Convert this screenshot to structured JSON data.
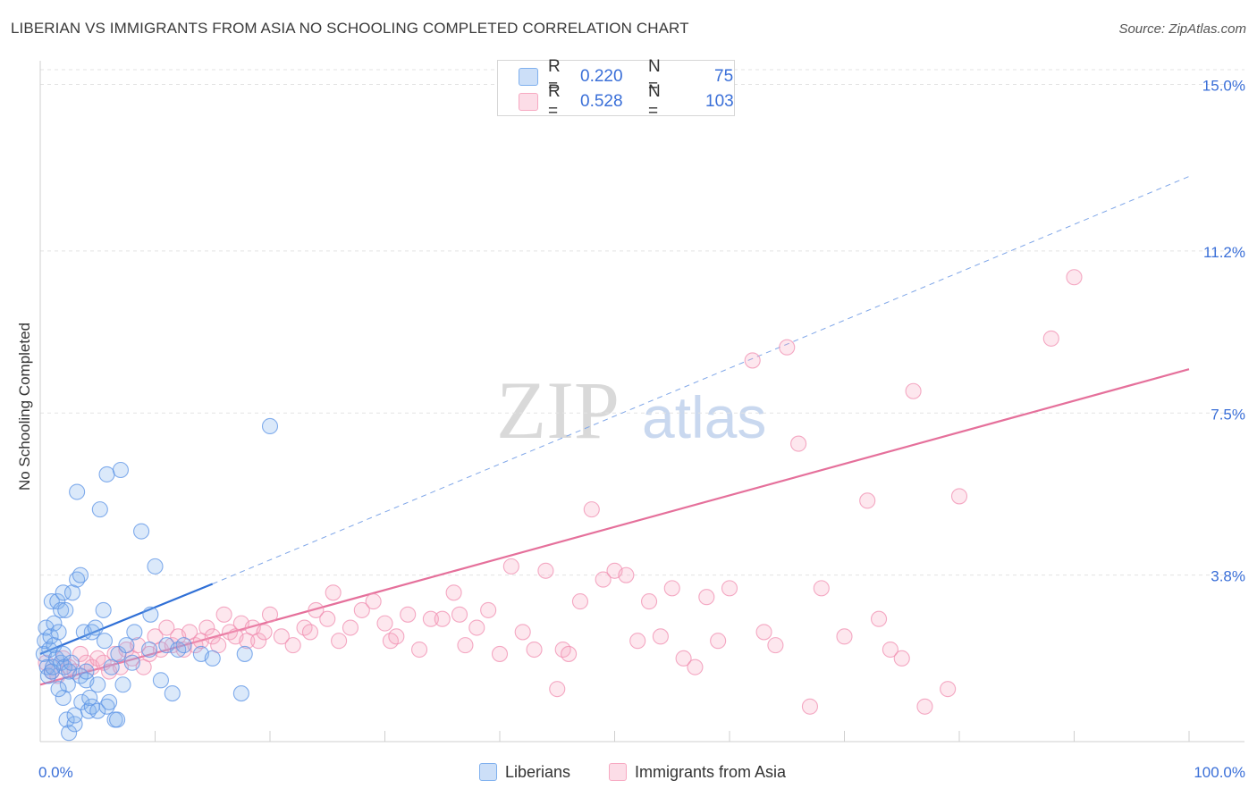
{
  "title": "LIBERIAN VS IMMIGRANTS FROM ASIA NO SCHOOLING COMPLETED CORRELATION CHART",
  "source": "Source: ZipAtlas.com",
  "watermark": {
    "zip": "ZIP",
    "atlas": "atlas"
  },
  "legend_top": [
    {
      "r_label": "R =",
      "r_value": "0.220",
      "n_label": "N =",
      "n_value": "75",
      "color": "#7fb0ee"
    },
    {
      "r_label": "R =",
      "r_value": "0.528",
      "n_label": "N =",
      "n_value": "103",
      "color": "#f7a9c2"
    }
  ],
  "legend_bottom": [
    {
      "label": "Liberians",
      "color": "#7fb0ee"
    },
    {
      "label": "Immigrants from Asia",
      "color": "#f7a9c2"
    }
  ],
  "chart_data": {
    "type": "scatter",
    "xlabel": "",
    "ylabel": "No Schooling Completed",
    "xlim": [
      0,
      100
    ],
    "ylim": [
      0,
      15.5
    ],
    "x_tick_labels": [
      {
        "value": 0,
        "label": "0.0%"
      },
      {
        "value": 100,
        "label": "100.0%"
      }
    ],
    "y_ticks": [
      {
        "value": 3.8,
        "label": "3.8%"
      },
      {
        "value": 7.5,
        "label": "7.5%"
      },
      {
        "value": 11.2,
        "label": "11.2%"
      },
      {
        "value": 15.0,
        "label": "15.0%"
      }
    ],
    "grid": true,
    "series": [
      {
        "name": "Liberians",
        "color": "#5b93e6",
        "fill": "rgba(127,176,238,0.28)",
        "trend": {
          "x0": 0,
          "y0": 2.0,
          "x1": 15,
          "y1": 3.6,
          "dash_x1": 100,
          "dash_y1": 12.9,
          "color": "#2f6fd6"
        },
        "points": [
          [
            0.3,
            2.0
          ],
          [
            0.4,
            2.3
          ],
          [
            0.5,
            2.6
          ],
          [
            0.6,
            1.7
          ],
          [
            0.7,
            1.5
          ],
          [
            0.8,
            2.1
          ],
          [
            0.9,
            2.4
          ],
          [
            1.0,
            3.2
          ],
          [
            1.0,
            1.6
          ],
          [
            1.2,
            2.7
          ],
          [
            1.2,
            2.2
          ],
          [
            1.4,
            1.9
          ],
          [
            1.5,
            3.2
          ],
          [
            1.6,
            2.5
          ],
          [
            1.8,
            3.0
          ],
          [
            1.8,
            1.8
          ],
          [
            2.0,
            3.4
          ],
          [
            2.0,
            2.0
          ],
          [
            2.0,
            1.0
          ],
          [
            2.1,
            1.7
          ],
          [
            2.2,
            3.0
          ],
          [
            2.3,
            0.5
          ],
          [
            2.5,
            0.2
          ],
          [
            2.5,
            1.6
          ],
          [
            2.7,
            1.8
          ],
          [
            2.8,
            3.4
          ],
          [
            3.0,
            0.4
          ],
          [
            3.2,
            5.7
          ],
          [
            3.2,
            3.7
          ],
          [
            3.5,
            3.8
          ],
          [
            3.5,
            1.5
          ],
          [
            3.6,
            0.9
          ],
          [
            3.8,
            2.5
          ],
          [
            4.0,
            1.4
          ],
          [
            4.0,
            1.6
          ],
          [
            4.2,
            0.7
          ],
          [
            4.5,
            0.8
          ],
          [
            4.5,
            2.5
          ],
          [
            4.8,
            2.6
          ],
          [
            5.0,
            1.3
          ],
          [
            5.0,
            0.7
          ],
          [
            5.2,
            5.3
          ],
          [
            5.5,
            3.0
          ],
          [
            5.6,
            2.3
          ],
          [
            5.8,
            6.1
          ],
          [
            5.8,
            0.8
          ],
          [
            6.0,
            0.9
          ],
          [
            6.2,
            1.7
          ],
          [
            6.5,
            0.5
          ],
          [
            6.8,
            2.0
          ],
          [
            7.0,
            6.2
          ],
          [
            7.2,
            1.3
          ],
          [
            7.5,
            2.2
          ],
          [
            8.2,
            2.5
          ],
          [
            8.8,
            4.8
          ],
          [
            9.6,
            2.9
          ],
          [
            10.0,
            4.0
          ],
          [
            10.5,
            1.4
          ],
          [
            11.0,
            2.2
          ],
          [
            12.0,
            2.1
          ],
          [
            11.5,
            1.1
          ],
          [
            12.5,
            2.2
          ],
          [
            14.0,
            2.0
          ],
          [
            15.0,
            1.9
          ],
          [
            17.5,
            1.1
          ],
          [
            17.8,
            2.0
          ],
          [
            20.0,
            7.2
          ],
          [
            9.5,
            2.1
          ],
          [
            8.0,
            1.8
          ],
          [
            3.0,
            0.6
          ],
          [
            1.1,
            1.7
          ],
          [
            2.4,
            1.3
          ],
          [
            4.3,
            1.0
          ],
          [
            6.7,
            0.5
          ],
          [
            1.6,
            1.2
          ]
        ]
      },
      {
        "name": "Immigrants from Asia",
        "color": "#f08db0",
        "fill": "rgba(247,169,194,0.28)",
        "trend": {
          "x0": 0,
          "y0": 1.3,
          "x1": 100,
          "y1": 8.5,
          "color": "#e5709b"
        },
        "points": [
          [
            0.5,
            1.8
          ],
          [
            1.0,
            1.6
          ],
          [
            1.5,
            1.5
          ],
          [
            2.0,
            1.9
          ],
          [
            2.5,
            1.7
          ],
          [
            3.0,
            1.6
          ],
          [
            3.5,
            2.0
          ],
          [
            4.0,
            1.8
          ],
          [
            4.5,
            1.7
          ],
          [
            5.0,
            1.9
          ],
          [
            5.5,
            1.8
          ],
          [
            6.0,
            1.6
          ],
          [
            6.5,
            2.0
          ],
          [
            7.0,
            1.7
          ],
          [
            7.5,
            2.1
          ],
          [
            8.0,
            1.9
          ],
          [
            8.5,
            2.2
          ],
          [
            9.0,
            1.7
          ],
          [
            9.5,
            2.0
          ],
          [
            10.0,
            2.4
          ],
          [
            10.5,
            2.1
          ],
          [
            11.0,
            2.6
          ],
          [
            11.5,
            2.2
          ],
          [
            12.0,
            2.4
          ],
          [
            12.5,
            2.1
          ],
          [
            13.0,
            2.5
          ],
          [
            13.5,
            2.2
          ],
          [
            14.0,
            2.3
          ],
          [
            14.5,
            2.6
          ],
          [
            15.0,
            2.4
          ],
          [
            15.5,
            2.2
          ],
          [
            16.0,
            2.9
          ],
          [
            16.5,
            2.5
          ],
          [
            17.0,
            2.4
          ],
          [
            17.5,
            2.7
          ],
          [
            18.0,
            2.3
          ],
          [
            18.5,
            2.6
          ],
          [
            19.0,
            2.3
          ],
          [
            19.5,
            2.5
          ],
          [
            20.0,
            2.9
          ],
          [
            21.0,
            2.4
          ],
          [
            22.0,
            2.2
          ],
          [
            23.0,
            2.6
          ],
          [
            23.5,
            2.5
          ],
          [
            24.0,
            3.0
          ],
          [
            25.0,
            2.8
          ],
          [
            25.5,
            3.4
          ],
          [
            26.0,
            2.3
          ],
          [
            27.0,
            2.6
          ],
          [
            28.0,
            3.0
          ],
          [
            29.0,
            3.2
          ],
          [
            30.0,
            2.7
          ],
          [
            30.5,
            2.3
          ],
          [
            31.0,
            2.4
          ],
          [
            32.0,
            2.9
          ],
          [
            33.0,
            2.1
          ],
          [
            34.0,
            2.8
          ],
          [
            35.0,
            2.8
          ],
          [
            36.0,
            3.4
          ],
          [
            36.5,
            2.9
          ],
          [
            37.0,
            2.2
          ],
          [
            38.0,
            2.6
          ],
          [
            39.0,
            3.0
          ],
          [
            40.0,
            2.0
          ],
          [
            41.0,
            4.0
          ],
          [
            42.0,
            2.5
          ],
          [
            43.0,
            2.1
          ],
          [
            44.0,
            3.9
          ],
          [
            45.0,
            1.2
          ],
          [
            45.5,
            2.1
          ],
          [
            46.0,
            2.0
          ],
          [
            47.0,
            3.2
          ],
          [
            48.0,
            5.3
          ],
          [
            49.0,
            3.7
          ],
          [
            50.0,
            3.9
          ],
          [
            51.0,
            3.8
          ],
          [
            52.0,
            2.3
          ],
          [
            53.0,
            3.2
          ],
          [
            54.0,
            2.4
          ],
          [
            55.0,
            3.5
          ],
          [
            56.0,
            1.9
          ],
          [
            57.0,
            1.7
          ],
          [
            58.0,
            3.3
          ],
          [
            59.0,
            2.3
          ],
          [
            60.0,
            3.5
          ],
          [
            62.0,
            8.7
          ],
          [
            63.0,
            2.5
          ],
          [
            64.0,
            2.2
          ],
          [
            65.0,
            9.0
          ],
          [
            66.0,
            6.8
          ],
          [
            67.0,
            0.8
          ],
          [
            68.0,
            3.5
          ],
          [
            70.0,
            2.4
          ],
          [
            72.0,
            5.5
          ],
          [
            73.0,
            2.8
          ],
          [
            74.0,
            2.1
          ],
          [
            75.0,
            1.9
          ],
          [
            76.0,
            8.0
          ],
          [
            77.0,
            0.8
          ],
          [
            79.0,
            1.2
          ],
          [
            80.0,
            5.6
          ],
          [
            88.0,
            9.2
          ],
          [
            90.0,
            10.6
          ]
        ]
      }
    ]
  }
}
